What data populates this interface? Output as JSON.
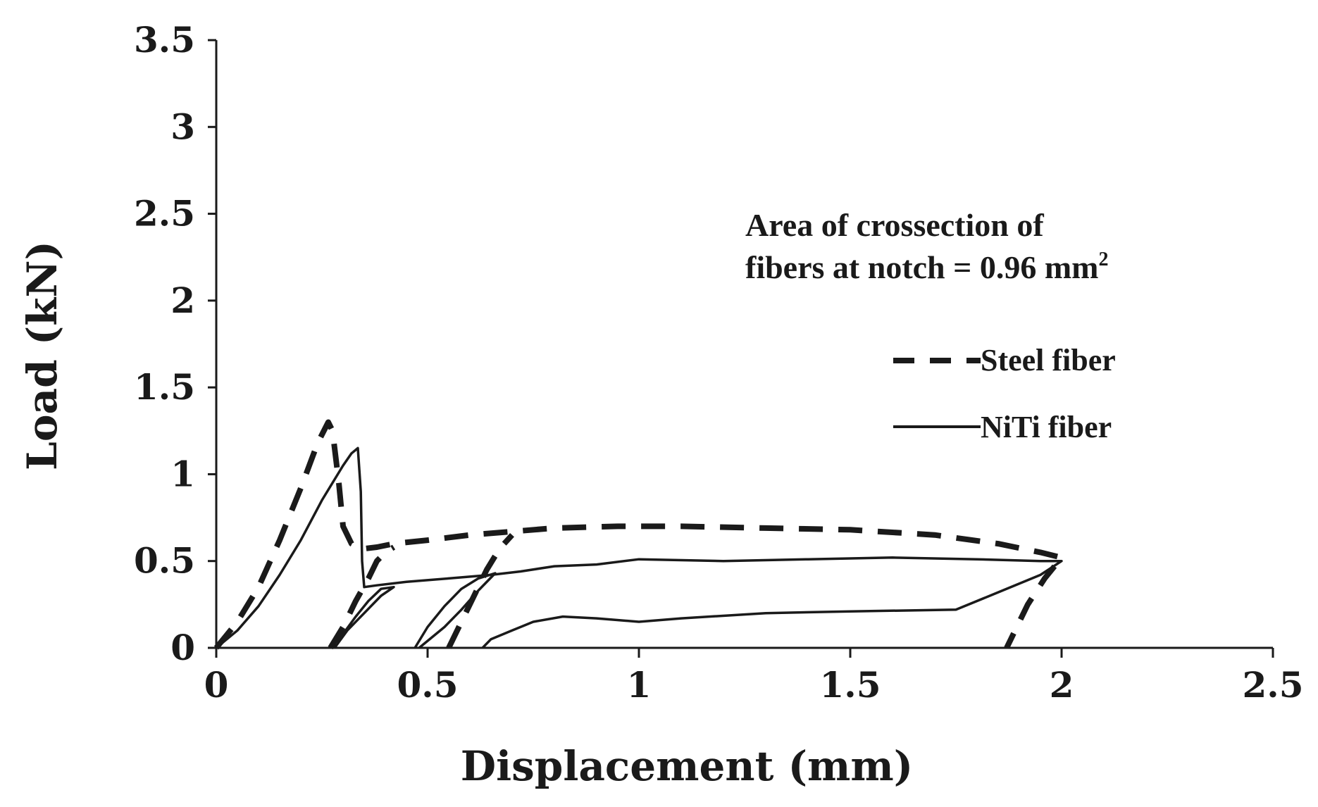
{
  "chart_data": {
    "type": "line",
    "title": "",
    "xlabel": "Displacement (mm)",
    "ylabel": "Load (kN)",
    "xlim": [
      0,
      2.5
    ],
    "ylim": [
      0,
      3.5
    ],
    "xticks": [
      "0",
      "0.5",
      "1",
      "1.5",
      "2",
      "2.5"
    ],
    "yticks": [
      "0",
      "0.5",
      "1",
      "1.5",
      "2",
      "2.5",
      "3",
      "3.5"
    ],
    "grid": false,
    "legend_position": "right",
    "annotation": {
      "line1": "Area  of crossection of",
      "line2": "fibers at notch = 0.96 mm",
      "superscript": "2"
    },
    "series": [
      {
        "name": "Steel fiber",
        "style": "dashed",
        "color": "#1a1a1a",
        "points": [
          [
            0,
            0
          ],
          [
            0.05,
            0.15
          ],
          [
            0.1,
            0.35
          ],
          [
            0.15,
            0.62
          ],
          [
            0.2,
            0.92
          ],
          [
            0.24,
            1.18
          ],
          [
            0.265,
            1.3
          ],
          [
            0.275,
            1.25
          ],
          [
            0.29,
            0.95
          ],
          [
            0.3,
            0.7
          ],
          [
            0.32,
            0.6
          ],
          [
            0.345,
            0.57
          ],
          [
            0.38,
            0.58
          ],
          [
            0.42,
            0.6
          ],
          [
            0.5,
            0.62
          ],
          [
            0.6,
            0.65
          ],
          [
            0.7,
            0.67
          ],
          [
            0.8,
            0.69
          ],
          [
            0.95,
            0.7
          ],
          [
            1.1,
            0.7
          ],
          [
            1.3,
            0.69
          ],
          [
            1.5,
            0.68
          ],
          [
            1.7,
            0.65
          ],
          [
            1.85,
            0.6
          ],
          [
            1.95,
            0.55
          ],
          [
            2.0,
            0.52
          ],
          [
            1.96,
            0.4
          ],
          [
            1.92,
            0.25
          ],
          [
            1.88,
            0.05
          ],
          [
            1.87,
            0
          ]
        ]
      },
      {
        "name": "",
        "style": "dashed",
        "color": "#1a1a1a",
        "points": [
          [
            0.27,
            0
          ],
          [
            0.3,
            0.12
          ],
          [
            0.33,
            0.27
          ],
          [
            0.36,
            0.4
          ],
          [
            0.38,
            0.5
          ],
          [
            0.4,
            0.55
          ],
          [
            0.42,
            0.58
          ]
        ]
      },
      {
        "name": "",
        "style": "dashed",
        "color": "#1a1a1a",
        "points": [
          [
            0.55,
            0
          ],
          [
            0.58,
            0.15
          ],
          [
            0.61,
            0.3
          ],
          [
            0.64,
            0.45
          ],
          [
            0.67,
            0.57
          ],
          [
            0.7,
            0.65
          ]
        ]
      },
      {
        "name": "NiTi fiber",
        "style": "solid",
        "color": "#1a1a1a",
        "points": [
          [
            0,
            0
          ],
          [
            0.05,
            0.1
          ],
          [
            0.1,
            0.24
          ],
          [
            0.15,
            0.42
          ],
          [
            0.2,
            0.62
          ],
          [
            0.25,
            0.85
          ],
          [
            0.3,
            1.05
          ],
          [
            0.32,
            1.12
          ],
          [
            0.335,
            1.15
          ],
          [
            0.342,
            0.9
          ],
          [
            0.345,
            0.5
          ],
          [
            0.35,
            0.35
          ],
          [
            0.38,
            0.36
          ],
          [
            0.45,
            0.38
          ],
          [
            0.55,
            0.4
          ],
          [
            0.65,
            0.42
          ],
          [
            0.72,
            0.44
          ],
          [
            0.8,
            0.47
          ],
          [
            0.9,
            0.48
          ],
          [
            1.0,
            0.51
          ],
          [
            1.2,
            0.5
          ],
          [
            1.4,
            0.51
          ],
          [
            1.6,
            0.52
          ],
          [
            1.8,
            0.51
          ],
          [
            1.95,
            0.5
          ],
          [
            2.0,
            0.5
          ],
          [
            1.95,
            0.42
          ],
          [
            1.85,
            0.32
          ],
          [
            1.75,
            0.22
          ],
          [
            1.5,
            0.21
          ],
          [
            1.3,
            0.2
          ],
          [
            1.1,
            0.17
          ],
          [
            1.0,
            0.15
          ],
          [
            0.9,
            0.17
          ],
          [
            0.82,
            0.18
          ],
          [
            0.75,
            0.15
          ],
          [
            0.7,
            0.1
          ],
          [
            0.65,
            0.05
          ],
          [
            0.63,
            0
          ]
        ]
      },
      {
        "name": "",
        "style": "solid",
        "color": "#1a1a1a",
        "points": [
          [
            0.27,
            0
          ],
          [
            0.3,
            0.08
          ],
          [
            0.33,
            0.18
          ],
          [
            0.36,
            0.27
          ],
          [
            0.39,
            0.34
          ],
          [
            0.42,
            0.35
          ],
          [
            0.39,
            0.3
          ],
          [
            0.35,
            0.2
          ],
          [
            0.31,
            0.1
          ],
          [
            0.28,
            0
          ]
        ]
      },
      {
        "name": "",
        "style": "solid",
        "color": "#1a1a1a",
        "points": [
          [
            0.47,
            0
          ],
          [
            0.5,
            0.12
          ],
          [
            0.54,
            0.24
          ],
          [
            0.58,
            0.34
          ],
          [
            0.62,
            0.4
          ],
          [
            0.66,
            0.43
          ],
          [
            0.62,
            0.33
          ],
          [
            0.58,
            0.22
          ],
          [
            0.54,
            0.12
          ],
          [
            0.5,
            0.04
          ],
          [
            0.48,
            0
          ]
        ]
      }
    ]
  }
}
